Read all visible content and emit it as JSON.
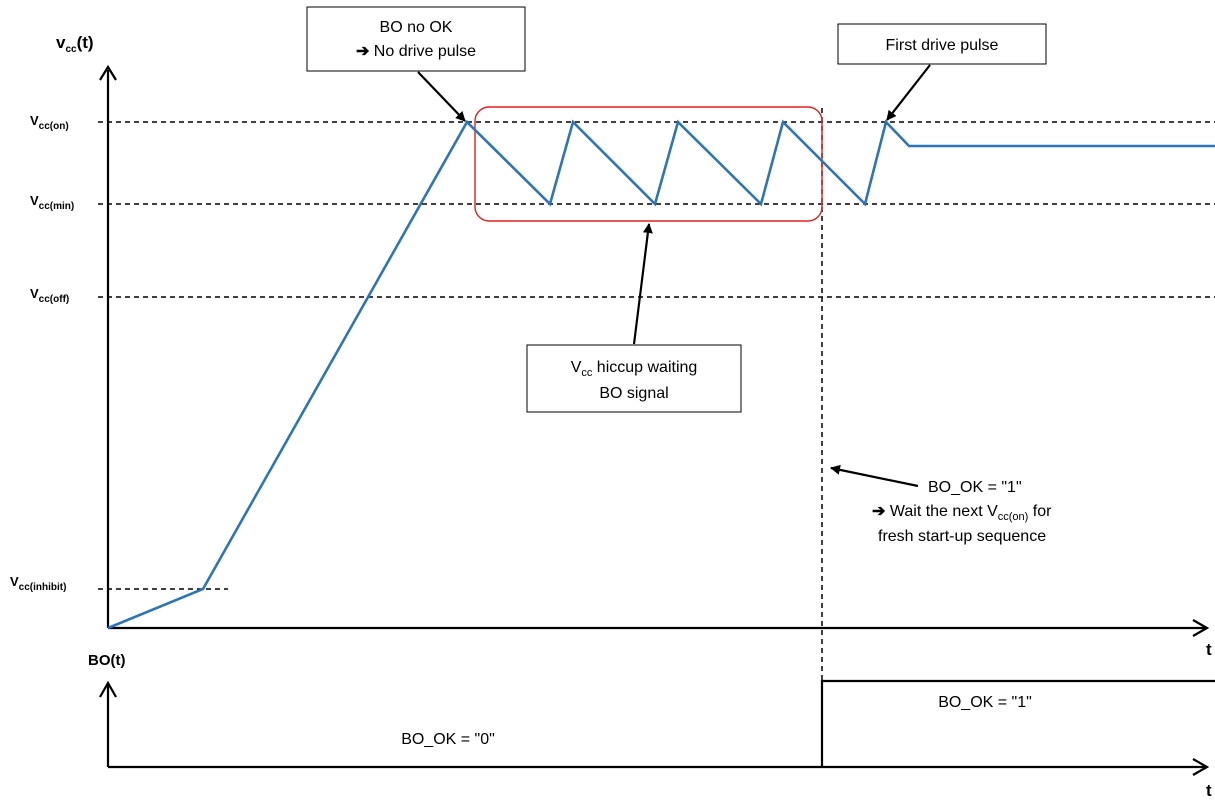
{
  "top_axis": {
    "y_name": "v",
    "y_name_sub": "cc",
    "y_name_suffix": "(t)",
    "x_name": "t"
  },
  "bottom_axis": {
    "y_name": "BO(t)",
    "x_name": "t"
  },
  "levels": {
    "on": {
      "main": "V",
      "sub": "cc(on)"
    },
    "min": {
      "main": "V",
      "sub": "cc(min)"
    },
    "off": {
      "main": "V",
      "sub": "cc(off)"
    },
    "inhibit": {
      "main": "V",
      "sub": "cc(inhibit)"
    }
  },
  "callouts": {
    "bo_no_ok": {
      "line1": "BO no OK",
      "line2_symbol": "➔",
      "line2": " No drive pulse"
    },
    "first_pulse": {
      "text": "First drive pulse"
    },
    "hiccup": {
      "line1_main": "V",
      "line1_sub": "cc",
      "line1_rest": " hiccup waiting",
      "line2": "BO signal"
    },
    "bo_ok_note": {
      "line1": "BO_OK = \"1\"",
      "line2_symbol": "➔",
      "line2_pre": " Wait the next V",
      "line2_sub": "cc(on)",
      "line2_post": " for",
      "line3": "fresh start-up sequence"
    }
  },
  "bo_labels": {
    "low": "BO_OK = \"0\"",
    "high": "BO_OK = \"1\""
  },
  "colors": {
    "waveform": "#2e75b6",
    "hiccup_box": "#e02020",
    "lines": "#000000"
  }
}
